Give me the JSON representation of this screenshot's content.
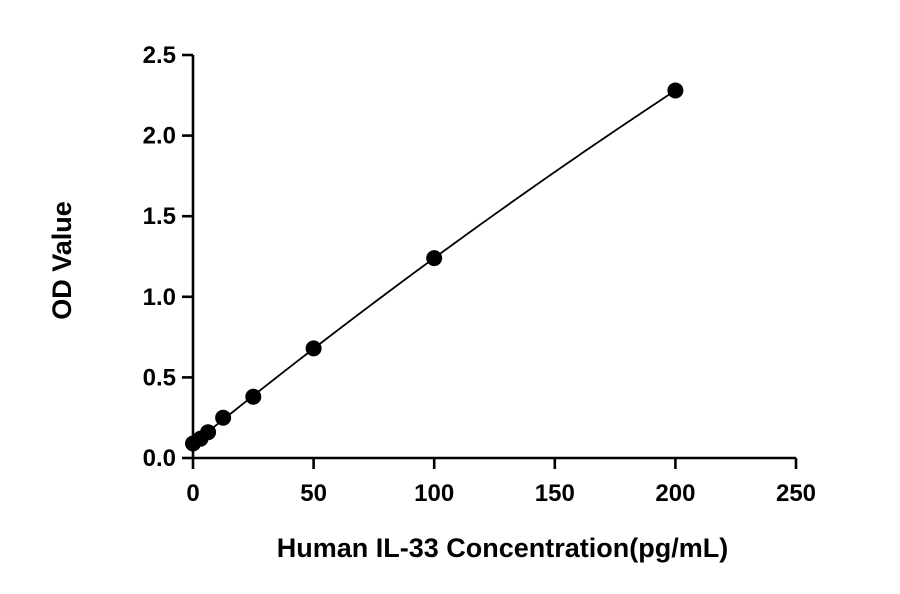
{
  "chart_data": {
    "type": "scatter",
    "title": "",
    "xlabel": "Human IL-33  Concentration(pg/mL)",
    "ylabel": "OD Value",
    "xlim": [
      0,
      250
    ],
    "ylim": [
      0,
      2.5
    ],
    "x_ticks": [
      0,
      50,
      100,
      150,
      200,
      250
    ],
    "y_ticks": [
      0.0,
      0.5,
      1.0,
      1.5,
      2.0,
      2.5
    ],
    "x_tick_labels": [
      "0",
      "50",
      "100",
      "150",
      "200",
      "250"
    ],
    "y_tick_labels": [
      "0.0",
      "0.5",
      "1.0",
      "1.5",
      "2.0",
      "2.5"
    ],
    "grid": false,
    "legend": "none",
    "series": [
      {
        "points": [
          {
            "x": 0,
            "y": 0.09
          },
          {
            "x": 3.125,
            "y": 0.12
          },
          {
            "x": 6.25,
            "y": 0.16
          },
          {
            "x": 12.5,
            "y": 0.25
          },
          {
            "x": 25,
            "y": 0.38
          },
          {
            "x": 50,
            "y": 0.68
          },
          {
            "x": 100,
            "y": 1.24
          },
          {
            "x": 200,
            "y": 2.28
          }
        ],
        "fit_curve": true
      }
    ]
  }
}
